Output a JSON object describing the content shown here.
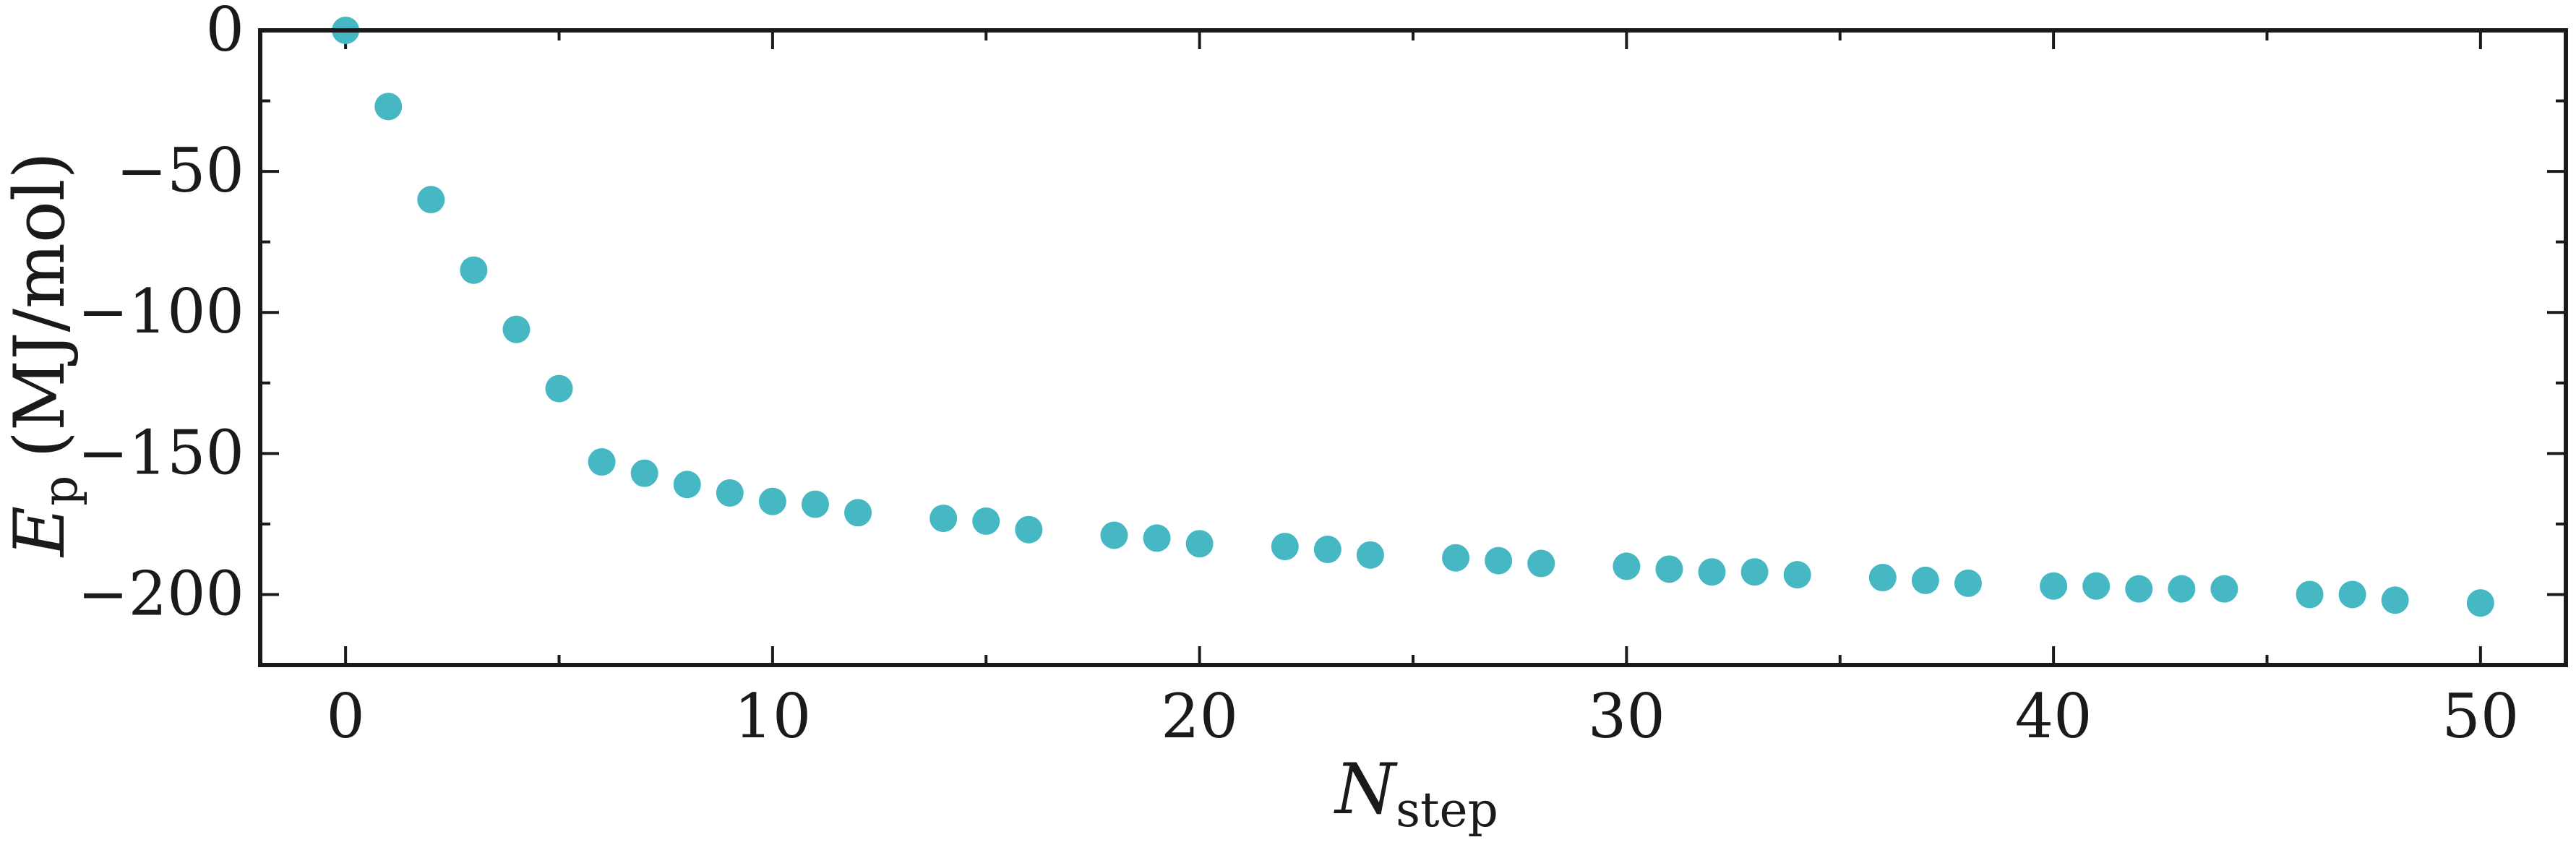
{
  "chart_data": {
    "type": "scatter",
    "xlabel": "N",
    "xlabel_sub": "step",
    "ylabel": "E",
    "ylabel_sub": "p",
    "ylabel_unit": "(MJ/mol)",
    "xlim": [
      -2,
      52
    ],
    "ylim": [
      -225,
      0
    ],
    "x_ticks": [
      0,
      10,
      20,
      30,
      40,
      50
    ],
    "x_tick_labels": [
      "0",
      "10",
      "20",
      "30",
      "40",
      "50"
    ],
    "y_ticks": [
      0,
      -50,
      -100,
      -150,
      -200
    ],
    "y_tick_labels": [
      "0",
      "−50",
      "−100",
      "−150",
      "−200"
    ],
    "x_minor_step": 5,
    "y_minor_step": 25,
    "marker_color": "#45b8c4",
    "axis_color": "#1a1a1a",
    "grid": false,
    "series": [
      {
        "x": [
          0,
          1,
          2,
          3,
          4,
          5,
          6,
          7,
          8,
          9,
          10,
          11,
          12,
          14,
          15,
          16,
          18,
          19,
          20,
          22,
          23,
          24,
          26,
          27,
          28,
          30,
          31,
          32,
          33,
          34,
          36,
          37,
          38,
          40,
          41,
          42,
          43,
          44,
          46,
          47,
          48,
          50
        ],
        "y": [
          0,
          -27,
          -60,
          -85,
          -106,
          -127,
          -153,
          -157,
          -161,
          -164,
          -167,
          -168,
          -171,
          -173,
          -174,
          -177,
          -179,
          -180,
          -182,
          -183,
          -184,
          -186,
          -187,
          -188,
          -189,
          -190,
          -191,
          -192,
          -192,
          -193,
          -194,
          -195,
          -196,
          -197,
          -197,
          -198,
          -198,
          -198,
          -200,
          -200,
          -202,
          -203
        ]
      }
    ]
  }
}
